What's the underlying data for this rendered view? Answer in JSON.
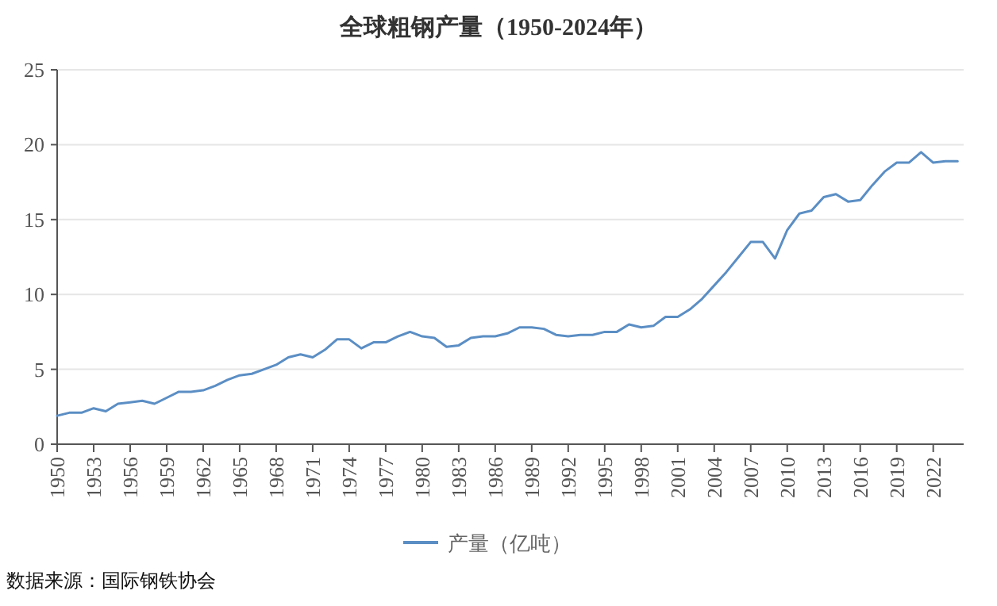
{
  "chart_data": {
    "type": "line",
    "title": "全球粗钢产量（1950-2024年）",
    "x": [
      1950,
      1951,
      1952,
      1953,
      1954,
      1955,
      1956,
      1957,
      1958,
      1959,
      1960,
      1961,
      1962,
      1963,
      1964,
      1965,
      1966,
      1967,
      1968,
      1969,
      1970,
      1971,
      1972,
      1973,
      1974,
      1975,
      1976,
      1977,
      1978,
      1979,
      1980,
      1981,
      1982,
      1983,
      1984,
      1985,
      1986,
      1987,
      1988,
      1989,
      1990,
      1991,
      1992,
      1993,
      1994,
      1995,
      1996,
      1997,
      1998,
      1999,
      2000,
      2001,
      2002,
      2003,
      2004,
      2005,
      2006,
      2007,
      2008,
      2009,
      2010,
      2011,
      2012,
      2013,
      2014,
      2015,
      2016,
      2017,
      2018,
      2019,
      2020,
      2021,
      2022,
      2023,
      2024
    ],
    "series": [
      {
        "name": "产量（亿吨）",
        "color": "#5b8ec4",
        "values": [
          1.9,
          2.1,
          2.1,
          2.4,
          2.2,
          2.7,
          2.8,
          2.9,
          2.7,
          3.1,
          3.5,
          3.5,
          3.6,
          3.9,
          4.3,
          4.6,
          4.7,
          5.0,
          5.3,
          5.8,
          6.0,
          5.8,
          6.3,
          7.0,
          7.0,
          6.4,
          6.8,
          6.8,
          7.2,
          7.5,
          7.2,
          7.1,
          6.5,
          6.6,
          7.1,
          7.2,
          7.2,
          7.4,
          7.8,
          7.8,
          7.7,
          7.3,
          7.2,
          7.3,
          7.3,
          7.5,
          7.5,
          8.0,
          7.8,
          7.9,
          8.5,
          8.5,
          9.0,
          9.7,
          10.6,
          11.5,
          12.5,
          13.5,
          13.5,
          12.4,
          14.3,
          15.4,
          15.6,
          16.5,
          16.7,
          16.2,
          16.3,
          17.3,
          18.2,
          18.8,
          18.8,
          19.5,
          18.8,
          18.9,
          18.9
        ]
      }
    ],
    "xlim": [
      1950,
      2024.5
    ],
    "xticks": [
      1950,
      1953,
      1956,
      1959,
      1962,
      1965,
      1968,
      1971,
      1974,
      1977,
      1980,
      1983,
      1986,
      1989,
      1992,
      1995,
      1998,
      2001,
      2004,
      2007,
      2010,
      2013,
      2016,
      2019,
      2022
    ],
    "ylim": [
      0,
      25
    ],
    "yticks": [
      0,
      5,
      10,
      15,
      20,
      25
    ],
    "grid": "y",
    "legend": "bottom",
    "annotations": [
      "数据来源：国际钢铁协会"
    ]
  }
}
